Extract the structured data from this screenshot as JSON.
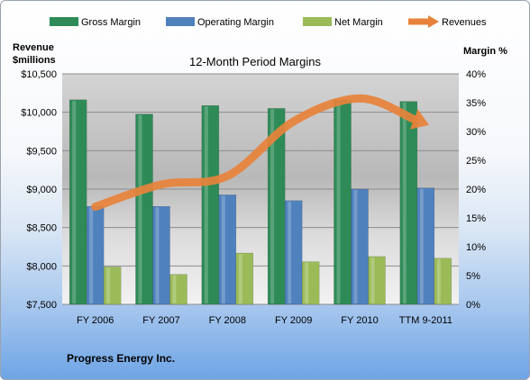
{
  "chart_data": {
    "type": "bar",
    "title": "12-Month Period Margins",
    "y_left_label": [
      "Revenue",
      "$millions"
    ],
    "y_right_label": "Margin %",
    "categories": [
      "FY 2006",
      "FY 2007",
      "FY 2008",
      "FY 2009",
      "FY 2010",
      "TTM 9-2011"
    ],
    "y_left_ticks": [
      "$7,500",
      "$8,000",
      "$8,500",
      "$9,000",
      "$9,500",
      "$10,000",
      "$10,500"
    ],
    "y_right_ticks": [
      "0%",
      "5%",
      "10%",
      "15%",
      "20%",
      "25%",
      "30%",
      "35%",
      "40%"
    ],
    "ylim_left": [
      7500,
      10500
    ],
    "ylim_right": [
      0,
      40
    ],
    "legend_position": "top",
    "grid": true,
    "series": [
      {
        "name": "Gross Margin",
        "kind": "bar",
        "axis": "right",
        "color": "#2e8b57",
        "values": [
          35.5,
          33.0,
          34.5,
          34.0,
          35.5,
          35.2
        ]
      },
      {
        "name": "Operating Margin",
        "kind": "bar",
        "axis": "right",
        "color": "#4f81bd",
        "values": [
          17.0,
          17.0,
          19.0,
          18.0,
          20.0,
          20.2
        ]
      },
      {
        "name": "Net Margin",
        "kind": "bar",
        "axis": "right",
        "color": "#9bbb59",
        "values": [
          6.5,
          5.2,
          8.9,
          7.4,
          8.3,
          8.0
        ]
      },
      {
        "name": "Revenues",
        "kind": "line",
        "axis": "left",
        "color": "#e8823a",
        "values": [
          8770,
          9060,
          9170,
          9880,
          10180,
          9850
        ]
      }
    ]
  },
  "footer": {
    "company": "Progress Energy Inc."
  }
}
